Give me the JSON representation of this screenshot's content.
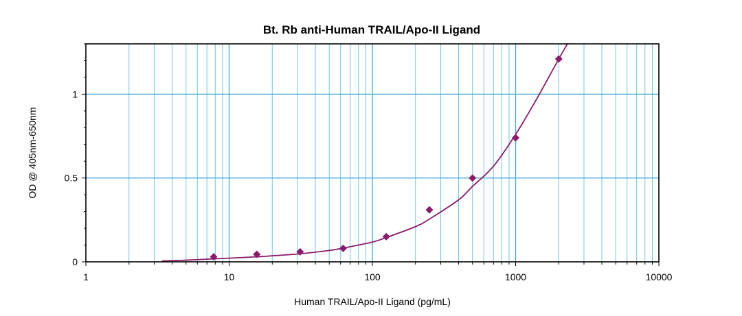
{
  "chart_data": {
    "type": "scatter",
    "title": "Bt. Rb anti-Human TRAIL/Apo-II Ligand",
    "xlabel": "Human TRAIL/Apo-II Ligand (pg/mL)",
    "ylabel": "OD @ 405nm-650nm",
    "x_scale": "log",
    "xlim": [
      1,
      10000
    ],
    "ylim": [
      0,
      1.3
    ],
    "x_ticks": [
      "1",
      "10",
      "100",
      "1000",
      "10000"
    ],
    "y_ticks": [
      "0",
      "0.5",
      "1"
    ],
    "grid": true,
    "colors": {
      "points": "#8b1a6b",
      "curve": "#8b1a6b",
      "grid_major": "#3fa9d6",
      "grid_minor": "#6cc7e6"
    },
    "series": [
      {
        "x": [
          7.8,
          15.6,
          31.3,
          62.5,
          125,
          250,
          500,
          1000,
          2000
        ],
        "y": [
          0.03,
          0.045,
          0.06,
          0.08,
          0.15,
          0.31,
          0.5,
          0.74,
          1.21
        ]
      }
    ],
    "fit_curve": {
      "x": [
        3.4,
        5,
        7.8,
        10,
        15.6,
        20,
        31.3,
        50,
        62.5,
        100,
        125,
        200,
        250,
        400,
        500,
        700,
        1000,
        1400,
        2000,
        2300
      ],
      "y": [
        0.005,
        0.01,
        0.018,
        0.022,
        0.03,
        0.036,
        0.048,
        0.068,
        0.082,
        0.118,
        0.145,
        0.21,
        0.255,
        0.37,
        0.45,
        0.57,
        0.76,
        0.97,
        1.21,
        1.3
      ]
    }
  }
}
